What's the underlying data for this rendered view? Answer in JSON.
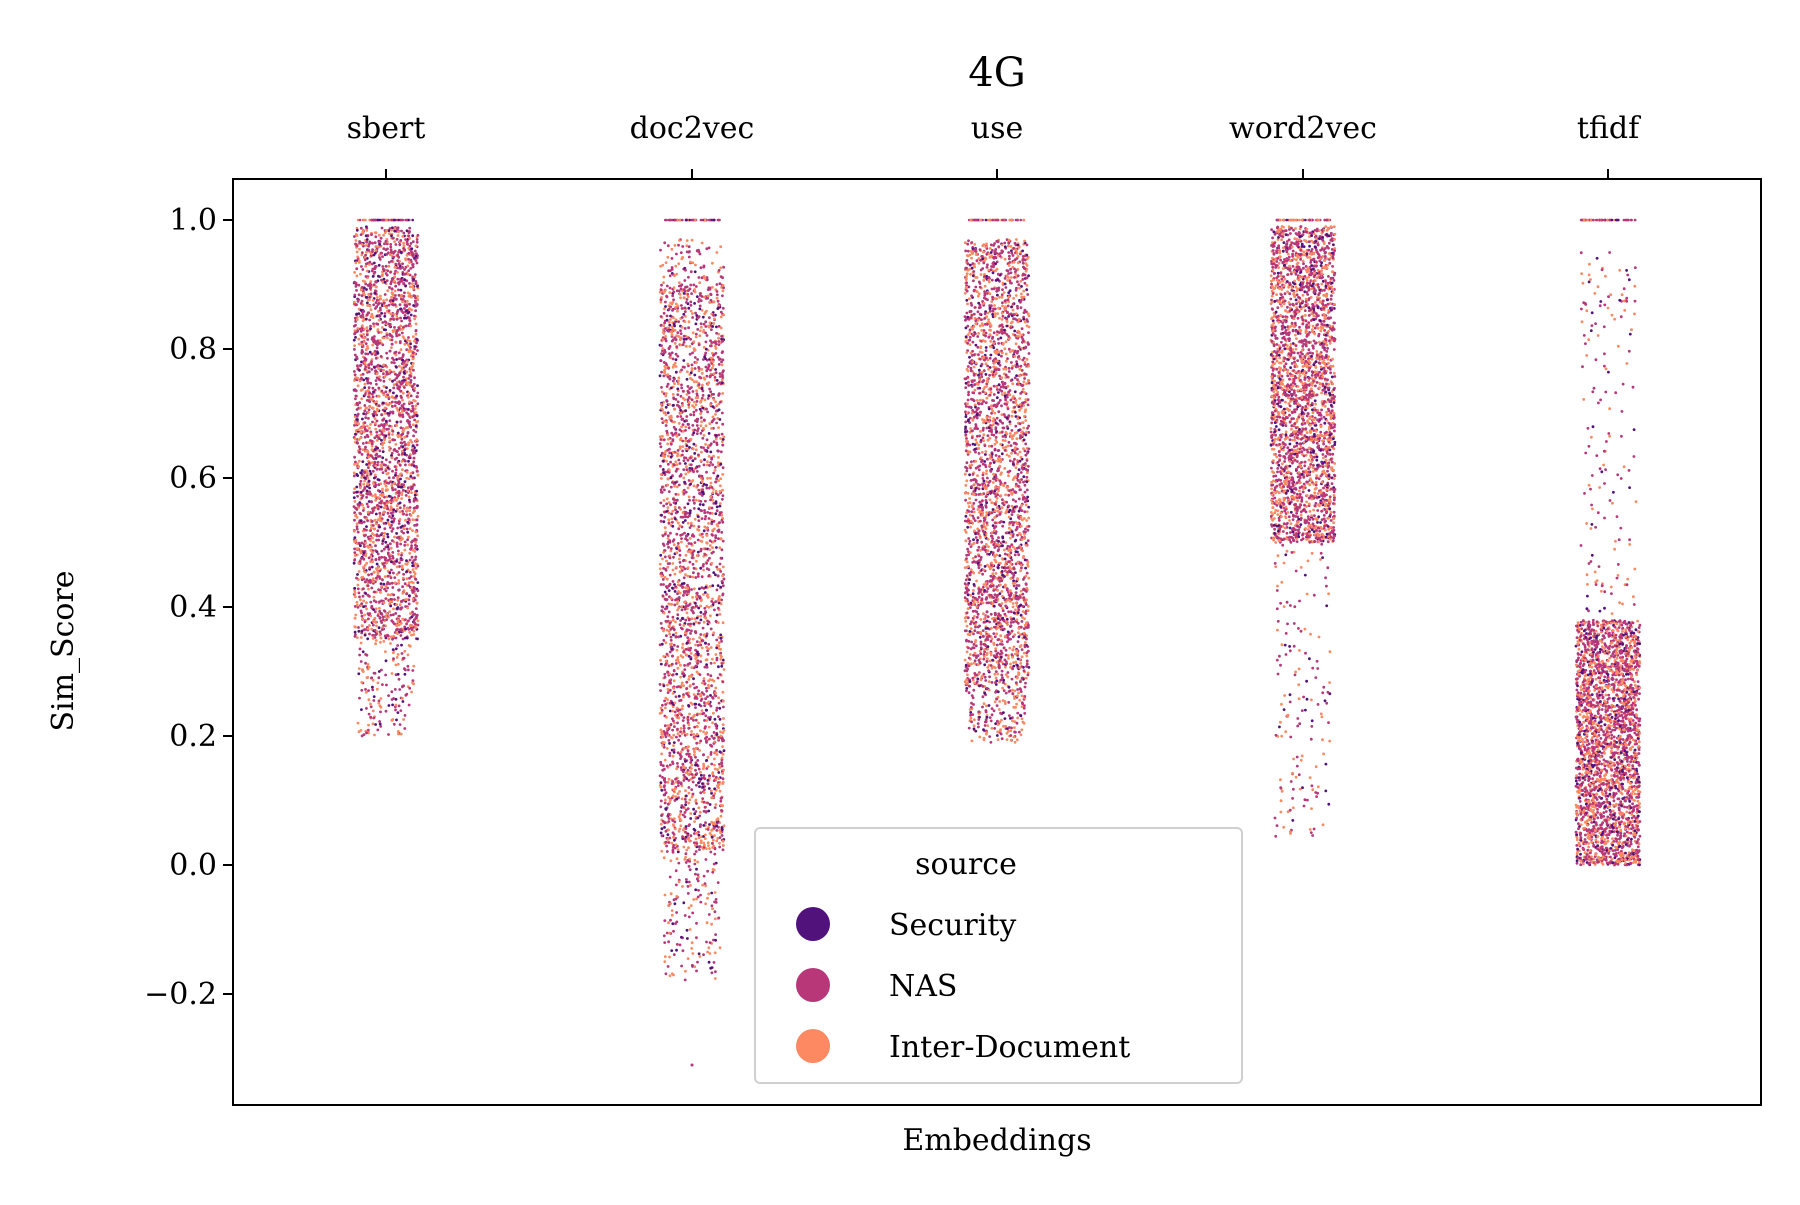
{
  "chart_data": {
    "type": "scatter",
    "subtype": "strip",
    "title": "4G",
    "xlabel": "Embeddings",
    "ylabel": "Sim_Score",
    "x_axis_position": "top",
    "categories": [
      "sbert",
      "doc2vec",
      "use",
      "word2vec",
      "tfidf"
    ],
    "ylim": [
      -0.35,
      1.07
    ],
    "yticks": [
      -0.2,
      0.0,
      0.2,
      0.4,
      0.6,
      0.8,
      1.0
    ],
    "ytick_labels": [
      "−0.2",
      "0.0",
      "0.2",
      "0.4",
      "0.6",
      "0.8",
      "1.0"
    ],
    "grid": false,
    "legend": {
      "title": "source",
      "placement": "bottom-center",
      "entries": [
        "Security",
        "NAS",
        "Inter-Document"
      ]
    },
    "series": [
      {
        "name": "Security",
        "color": "#51127c"
      },
      {
        "name": "NAS",
        "color": "#b73779"
      },
      {
        "name": "Inter-Document",
        "color": "#fc8961"
      }
    ],
    "distributions": [
      {
        "category": "sbert",
        "dense_range": [
          0.35,
          0.99
        ],
        "sparse_range": [
          0.2,
          0.35
        ],
        "max": 1.0
      },
      {
        "category": "doc2vec",
        "dense_range": [
          0.02,
          0.9
        ],
        "sparse_range": [
          -0.18,
          0.02
        ],
        "upper_sparse": [
          0.9,
          0.97
        ],
        "min": -0.31,
        "max": 1.0
      },
      {
        "category": "use",
        "dense_range": [
          0.27,
          0.97
        ],
        "sparse_range": [
          0.19,
          0.27
        ],
        "max": 1.0
      },
      {
        "category": "word2vec",
        "dense_range": [
          0.5,
          0.99
        ],
        "sparse_range": [
          0.04,
          0.5
        ],
        "max": 1.0
      },
      {
        "category": "tfidf",
        "dense_range": [
          0.0,
          0.38
        ],
        "sparse_range": [
          0.38,
          0.95
        ],
        "max": 1.0
      }
    ]
  }
}
